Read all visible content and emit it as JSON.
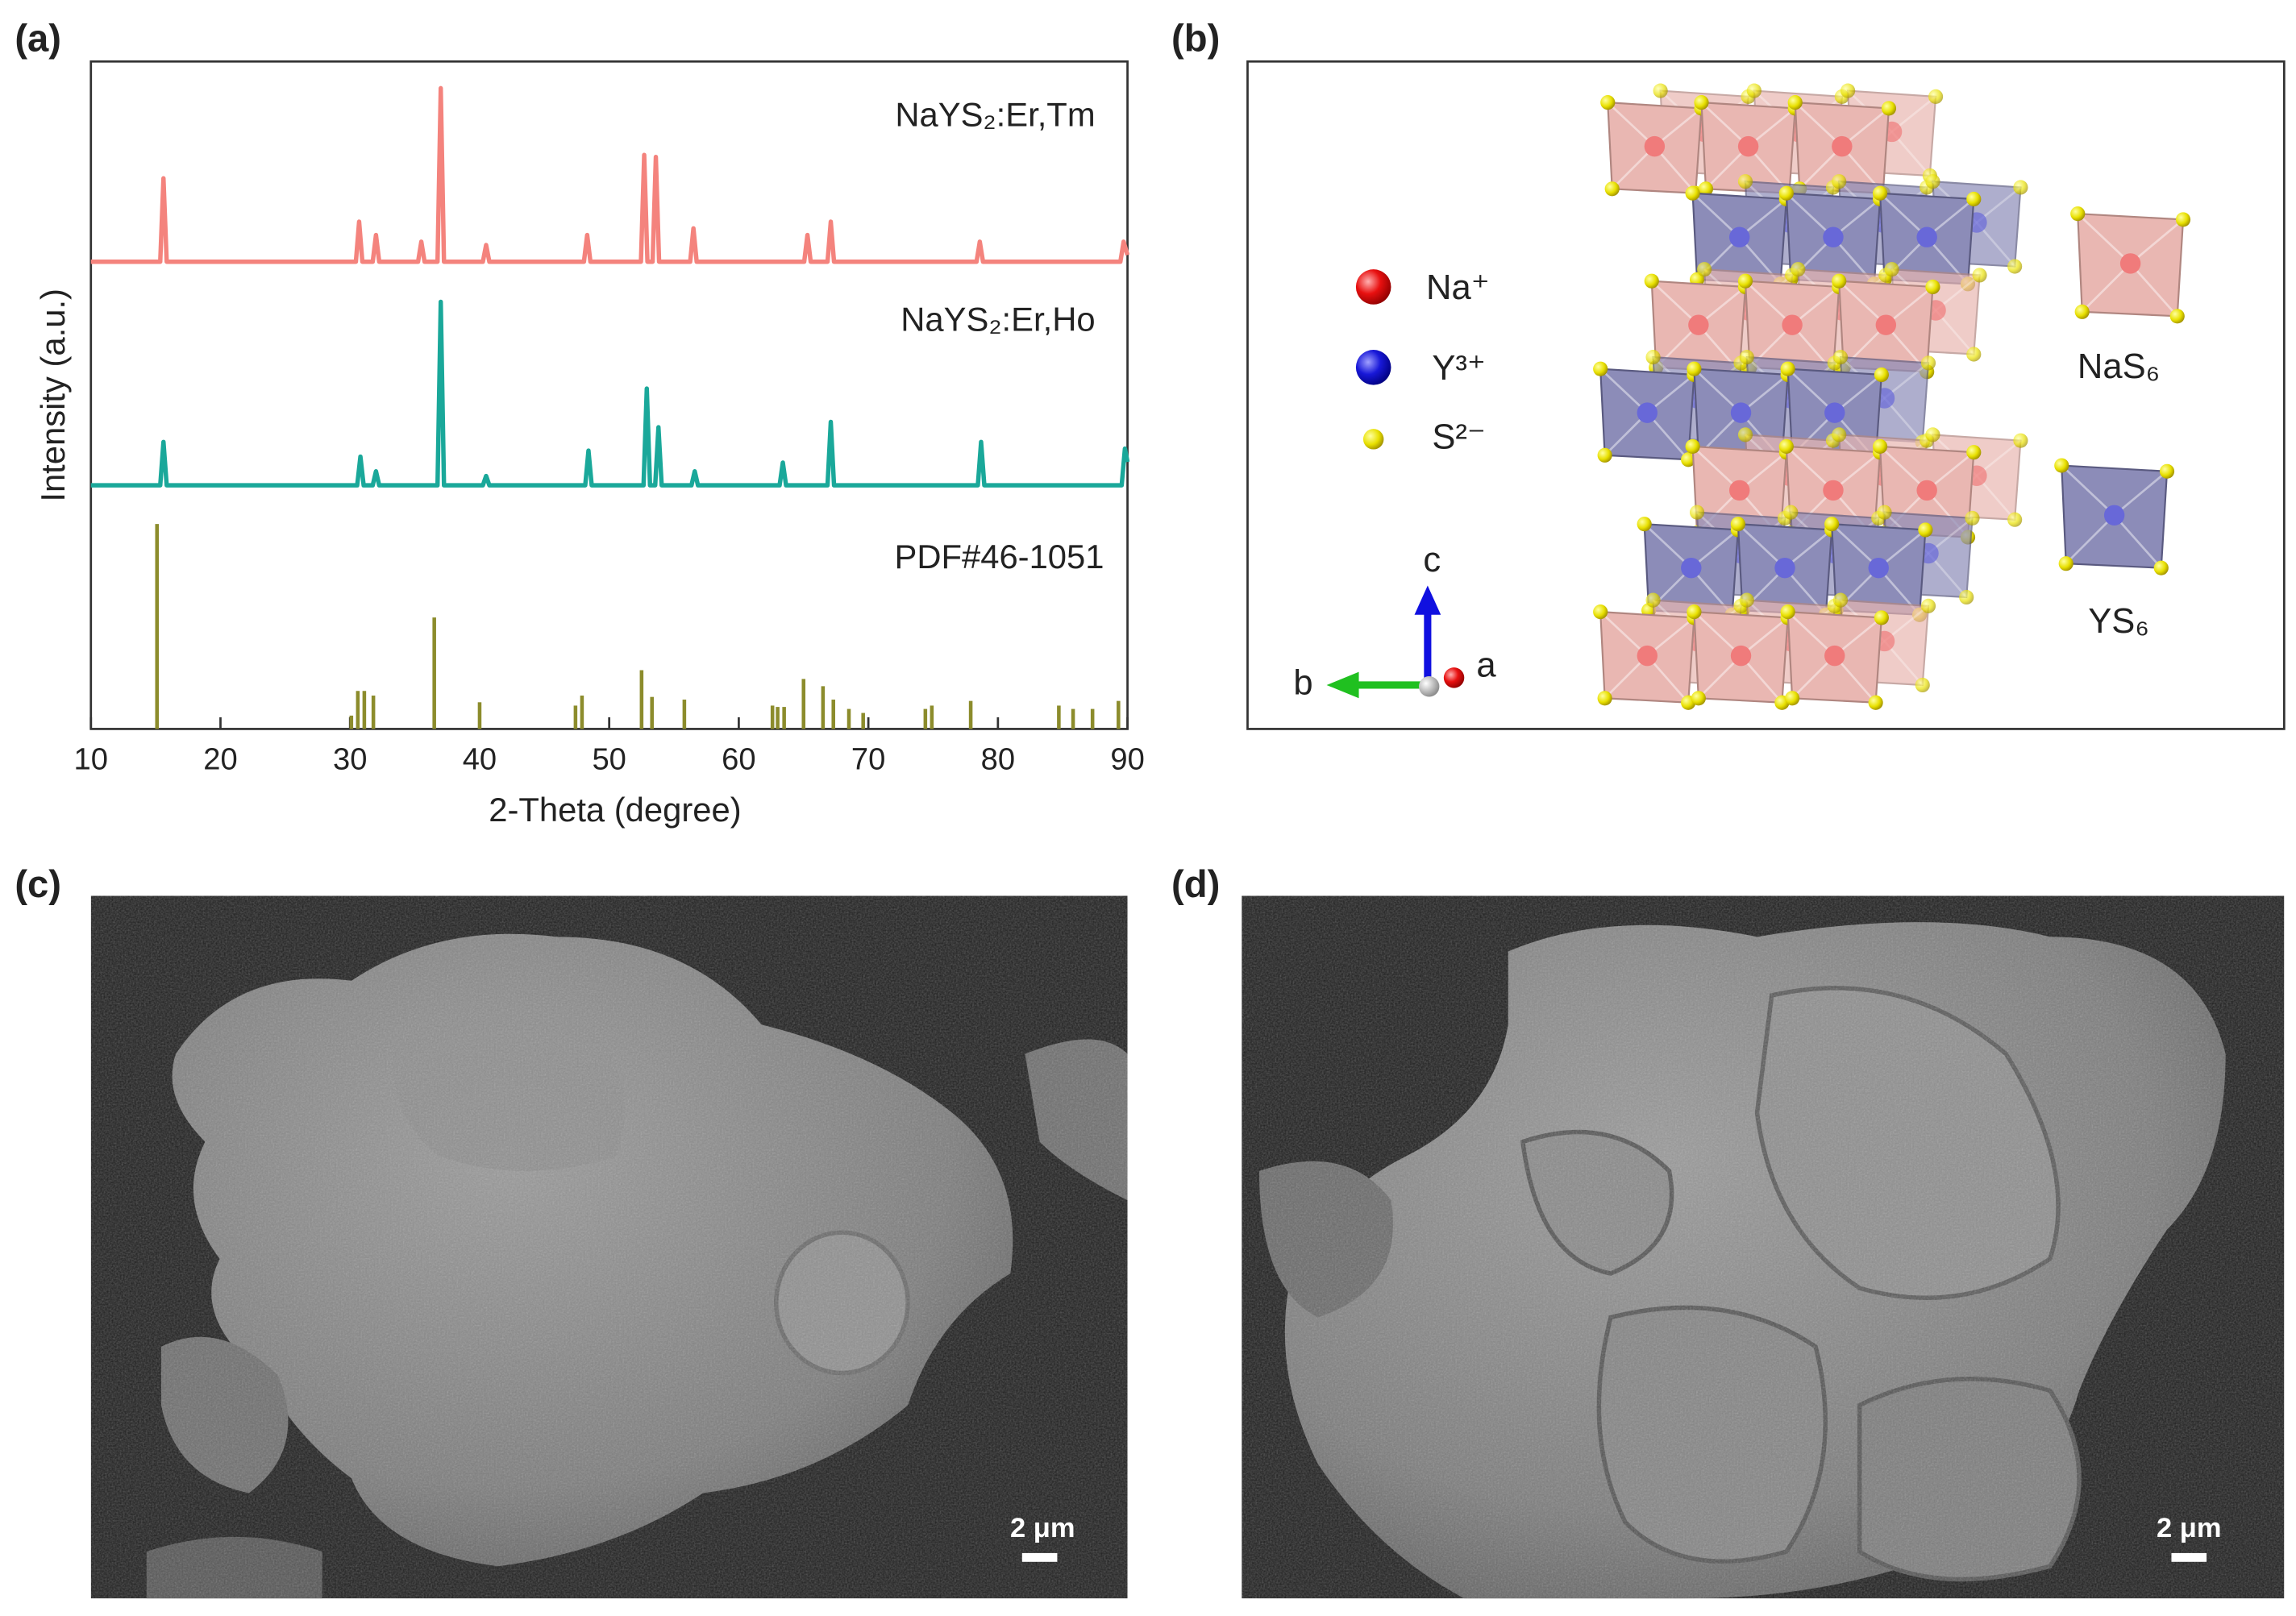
{
  "panel_labels": [
    "(a)",
    "(b)",
    "(c)",
    "(d)"
  ],
  "chart_data": {
    "type": "line",
    "xlabel": "2-Theta (degree)",
    "ylabel": "Intensity (a.u.)",
    "xlim": [
      10,
      90
    ],
    "xticks": [
      10,
      20,
      30,
      40,
      50,
      60,
      70,
      80,
      90
    ],
    "ylim": [
      0,
      100
    ],
    "grid": false,
    "series": [
      {
        "name": "NaYS₂:Er,Tm",
        "color": "#f4837d",
        "mode": "line",
        "x": [
          10,
          15.35,
          15.6,
          15.85,
          30.45,
          30.7,
          30.95,
          31.75,
          32,
          32.25,
          35.25,
          35.5,
          35.75,
          36.75,
          37,
          37.25,
          40.25,
          40.5,
          40.75,
          48.05,
          48.3,
          48.55,
          52.45,
          52.7,
          52.95,
          53.35,
          53.6,
          53.85,
          56.25,
          56.5,
          56.75,
          65.05,
          65.3,
          65.55,
          66.85,
          67.1,
          67.35,
          78.35,
          78.6,
          78.85,
          89.45,
          89.7,
          90
        ],
        "values": [
          70,
          70,
          82.5,
          70,
          70,
          76,
          70,
          70,
          74,
          70,
          70,
          73,
          70,
          70,
          96,
          70,
          70,
          72.5,
          70,
          70,
          74,
          70,
          70,
          86,
          70,
          70,
          85.7,
          70,
          70,
          75,
          70,
          70,
          74,
          70,
          70,
          76,
          70,
          70,
          73,
          70,
          70,
          73,
          71
        ]
      },
      {
        "name": "NaYS₂:Er,Ho",
        "color": "#1aa89a",
        "mode": "line",
        "x": [
          10,
          15.35,
          15.6,
          15.85,
          30.55,
          30.8,
          31.05,
          31.75,
          32,
          32.25,
          36.75,
          37,
          37.25,
          40.25,
          40.5,
          40.75,
          48.15,
          48.4,
          48.65,
          52.65,
          52.9,
          53.15,
          53.55,
          53.8,
          54.05,
          56.35,
          56.6,
          56.85,
          63.15,
          63.4,
          63.65,
          66.85,
          67.1,
          67.35,
          78.45,
          78.7,
          78.95,
          89.55,
          89.8,
          90
        ],
        "values": [
          36.5,
          36.5,
          43,
          36.5,
          36.5,
          40.8,
          36.5,
          36.5,
          38.6,
          36.5,
          36.5,
          64,
          36.5,
          36.5,
          37.9,
          36.5,
          36.5,
          41.7,
          36.5,
          36.5,
          51,
          36.5,
          36.5,
          45.2,
          36.5,
          36.5,
          38.6,
          36.5,
          36.5,
          39.9,
          36.5,
          36.5,
          46,
          36.5,
          36.5,
          43,
          36.5,
          36.5,
          42,
          40
        ]
      },
      {
        "name": "PDF#46-1051",
        "color": "#8c8c2c",
        "mode": "stick",
        "x": [
          15.1,
          30.1,
          30.6,
          31.1,
          31.8,
          36.5,
          40,
          47.4,
          47.9,
          52.5,
          53.3,
          55.8,
          62.6,
          63,
          63.5,
          65,
          66.5,
          67.3,
          68.5,
          69.6,
          74.4,
          74.9,
          77.9,
          84.7,
          85.8,
          87.3,
          89.3
        ],
        "values": [
          30.7,
          2,
          5.7,
          5.7,
          5,
          16.7,
          4,
          3.5,
          5,
          8.8,
          4.8,
          4.4,
          3.5,
          3.3,
          3.3,
          7.5,
          6.4,
          4.4,
          3,
          2.4,
          3,
          3.5,
          4.2,
          3.5,
          3,
          3,
          4.2
        ]
      }
    ]
  },
  "structure": {
    "legend": [
      "Na⁺",
      "Y³⁺",
      "S²⁻"
    ],
    "axes": [
      "c",
      "b",
      "a"
    ],
    "polyhedra": [
      "NaS₆",
      "YS₆"
    ]
  },
  "sem": [
    {
      "scale_bar": "2 μm"
    },
    {
      "scale_bar": "2 μm"
    }
  ]
}
